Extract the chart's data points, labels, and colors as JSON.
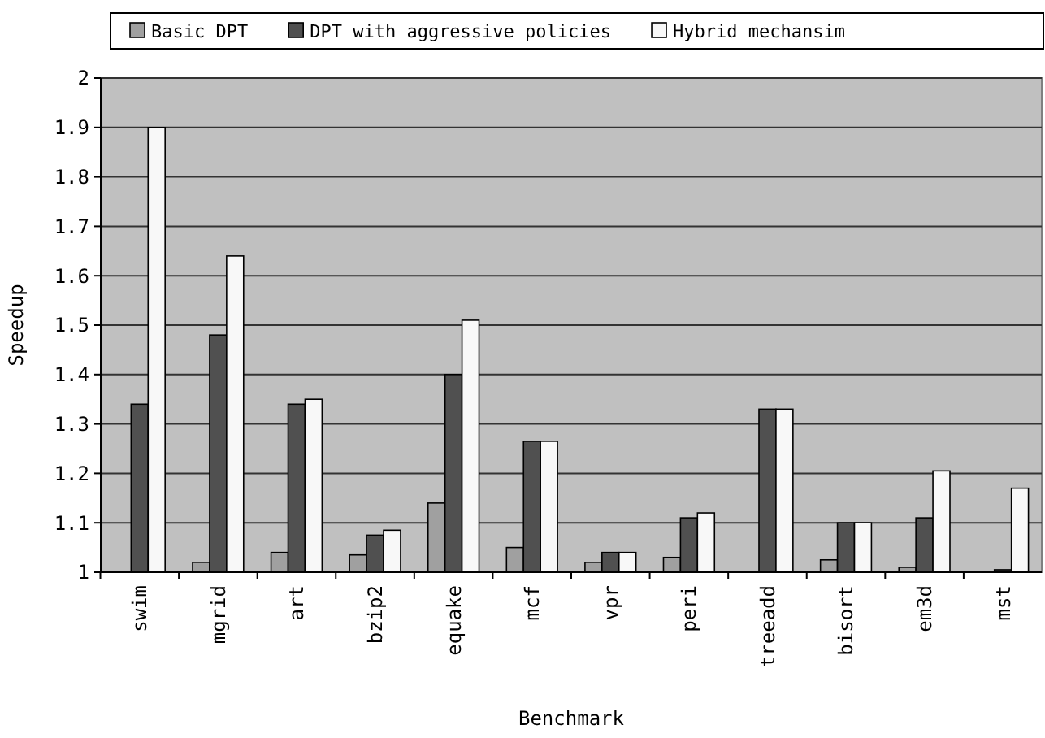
{
  "chart_data": {
    "type": "bar",
    "xlabel": "Benchmark",
    "ylabel": "Speedup",
    "categories": [
      "swim",
      "mgrid",
      "art",
      "bzip2",
      "equake",
      "mcf",
      "vpr",
      "peri",
      "treeadd",
      "bisort",
      "em3d",
      "mst"
    ],
    "series": [
      {
        "name": "Basic DPT",
        "color": "#a0a0a0",
        "values": [
          1.0,
          1.02,
          1.04,
          1.035,
          1.14,
          1.05,
          1.02,
          1.03,
          1.0,
          1.025,
          1.01,
          1.0
        ]
      },
      {
        "name": "DPT with aggressive policies",
        "color": "#505050",
        "values": [
          1.34,
          1.48,
          1.34,
          1.075,
          1.4,
          1.265,
          1.04,
          1.11,
          1.33,
          1.1,
          1.11,
          1.005
        ]
      },
      {
        "name": "Hybrid mechansim",
        "color": "#f8f8f8",
        "values": [
          1.9,
          1.64,
          1.35,
          1.085,
          1.51,
          1.265,
          1.04,
          1.12,
          1.33,
          1.1,
          1.205,
          1.17
        ]
      }
    ],
    "ylim": [
      1,
      2
    ],
    "yticks": [
      1,
      1.1,
      1.2,
      1.3,
      1.4,
      1.5,
      1.6,
      1.7,
      1.8,
      1.9,
      2
    ],
    "grid": "y",
    "legend": "top"
  }
}
